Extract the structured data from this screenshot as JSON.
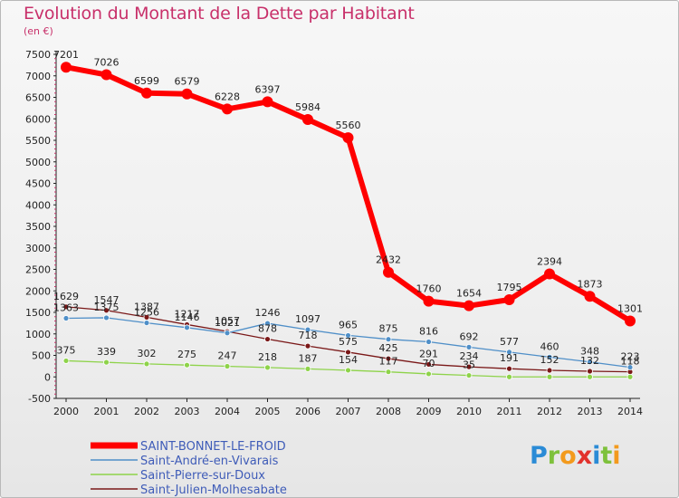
{
  "title": "Evolution du Montant de la Dette par Habitant",
  "subtitle": "(en €)",
  "brand": "Proxiti",
  "chart_data": {
    "type": "line",
    "x": [
      "2000",
      "2001",
      "2002",
      "2003",
      "2004",
      "2005",
      "2006",
      "2007",
      "2008",
      "2009",
      "2010",
      "2011",
      "2012",
      "2013",
      "2014"
    ],
    "ylim": [
      -500,
      7500
    ],
    "yticks": [
      -500,
      0,
      500,
      1000,
      1500,
      2000,
      2500,
      3000,
      3500,
      4000,
      4500,
      5000,
      5500,
      6000,
      6500,
      7000,
      7500
    ],
    "grid": false,
    "legend": "bottom-left",
    "series": [
      {
        "name": "SAINT-BONNET-LE-FROID",
        "color": "#ff0000",
        "width": 6,
        "values": [
          7201,
          7026,
          6599,
          6579,
          6228,
          6397,
          5984,
          5560,
          2432,
          1760,
          1654,
          1795,
          2394,
          1873,
          1301
        ],
        "labels": [
          "7201",
          "7026",
          "6599",
          "6579",
          "6228",
          "6397",
          "5984",
          "5560",
          "2432",
          "1760",
          "1654",
          "1795",
          "2394",
          "1873",
          "1301"
        ]
      },
      {
        "name": "Saint-André-en-Vivarais",
        "color": "#4f8fc8",
        "width": 1.3,
        "values": [
          1363,
          1375,
          1256,
          1146,
          1021,
          1246,
          1097,
          965,
          875,
          816,
          692,
          577,
          460,
          348,
          223
        ],
        "labels": [
          "1363",
          "1375",
          "1256",
          "1146",
          "1021",
          "1246",
          "1097",
          "965",
          "875",
          "816",
          "692",
          "577",
          "460",
          "348",
          "223"
        ]
      },
      {
        "name": "Saint-Pierre-sur-Doux",
        "color": "#8ed34a",
        "width": 1.3,
        "values": [
          375,
          339,
          302,
          275,
          247,
          218,
          187,
          154,
          117,
          70,
          35,
          0,
          0,
          0,
          0
        ],
        "labels": [
          "375",
          "339",
          "302",
          "275",
          "247",
          "218",
          "187",
          "154",
          "117",
          "70",
          "35",
          "",
          "",
          "",
          ""
        ]
      },
      {
        "name": "Saint-Julien-Molhesabate",
        "color": "#7a1818",
        "width": 1.3,
        "values": [
          1629,
          1547,
          1387,
          1217,
          1057,
          878,
          718,
          575,
          425,
          291,
          234,
          191,
          152,
          132,
          118
        ],
        "labels": [
          "1629",
          "1547",
          "1387",
          "1217",
          "1057",
          "878",
          "718",
          "575",
          "425",
          "291",
          "234",
          "191",
          "152",
          "132",
          "118"
        ]
      }
    ]
  }
}
